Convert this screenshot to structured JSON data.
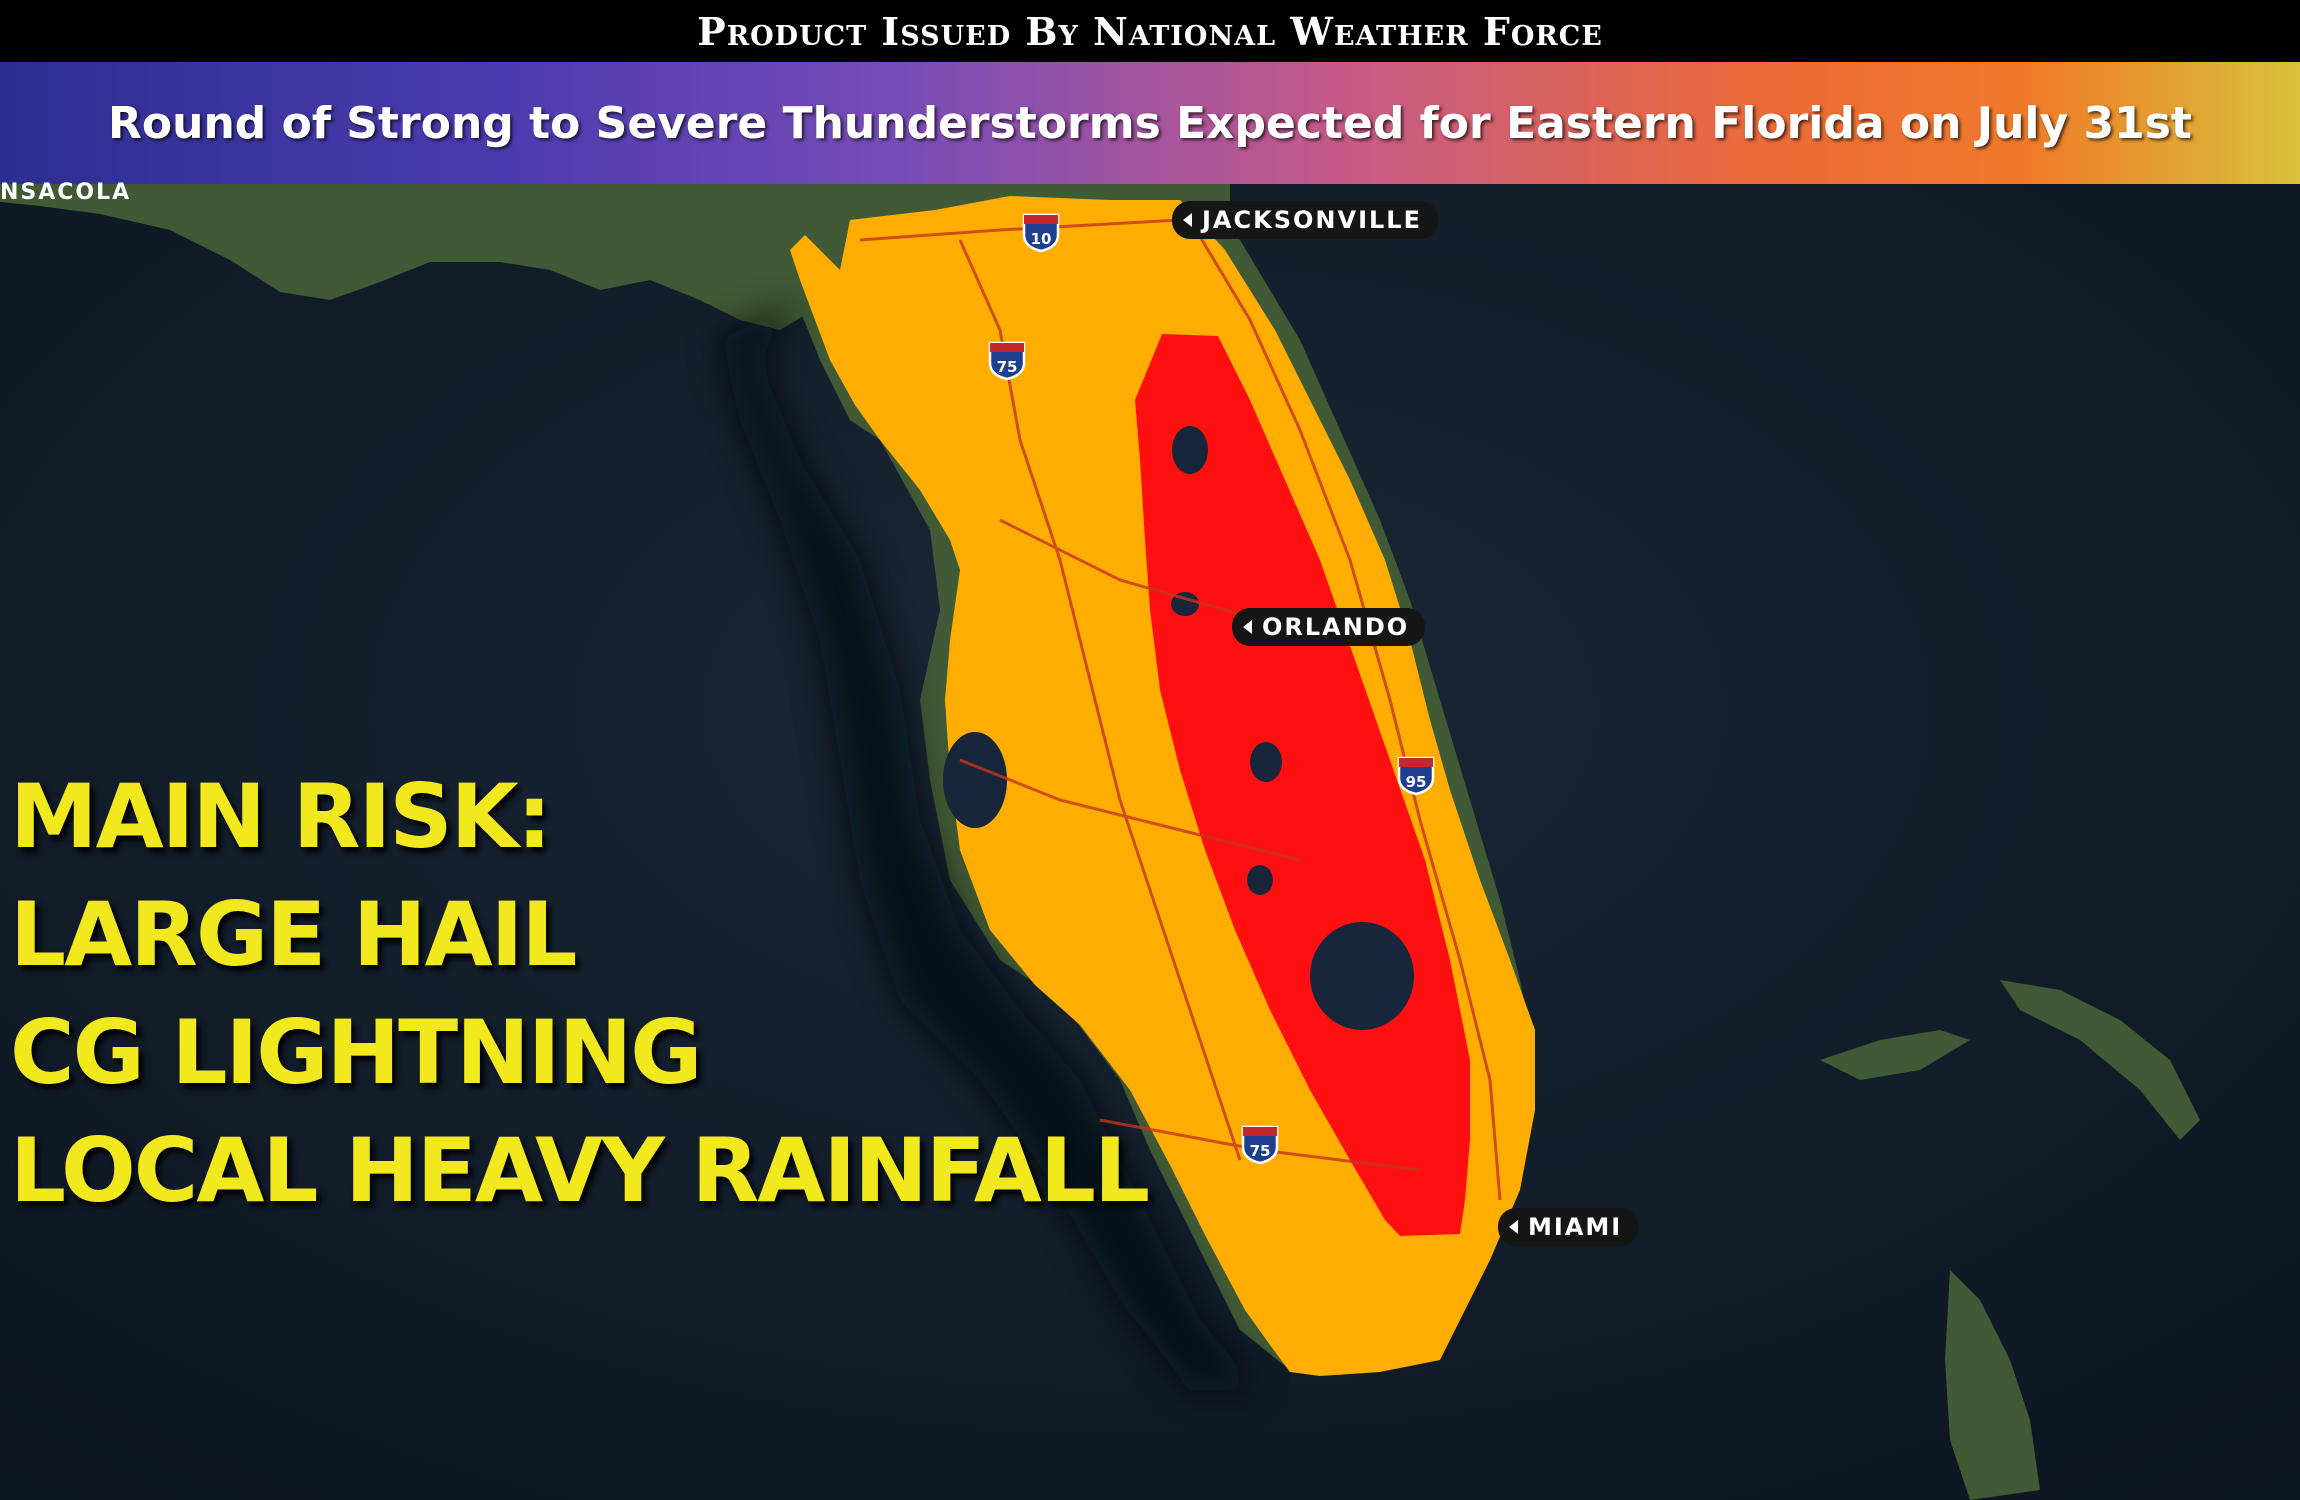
{
  "header": {
    "issuer": "Product Issued By National Weather Force",
    "headline": "Round of Strong to Severe Thunderstorms Expected for Eastern Florida on July 31st"
  },
  "map": {
    "cities": {
      "jacksonville": "JACKSONVILLE",
      "orlando": "ORLANDO",
      "miami": "MIAMI",
      "pensacola_partial": "NSACOLA"
    },
    "highways": {
      "i10": "10",
      "i75_north": "75",
      "i75_south": "75",
      "i95": "95"
    },
    "colors": {
      "ocean": "#0f1a26",
      "land": "#3f5a34",
      "outer_risk": "#ffad00",
      "inner_risk": "#ff1010",
      "risk_text": "#f2e81e"
    }
  },
  "risks": {
    "title": "MAIN RISK:",
    "items": [
      "LARGE HAIL",
      "CG LIGHTNING",
      "LOCAL HEAVY RAINFALL"
    ]
  }
}
